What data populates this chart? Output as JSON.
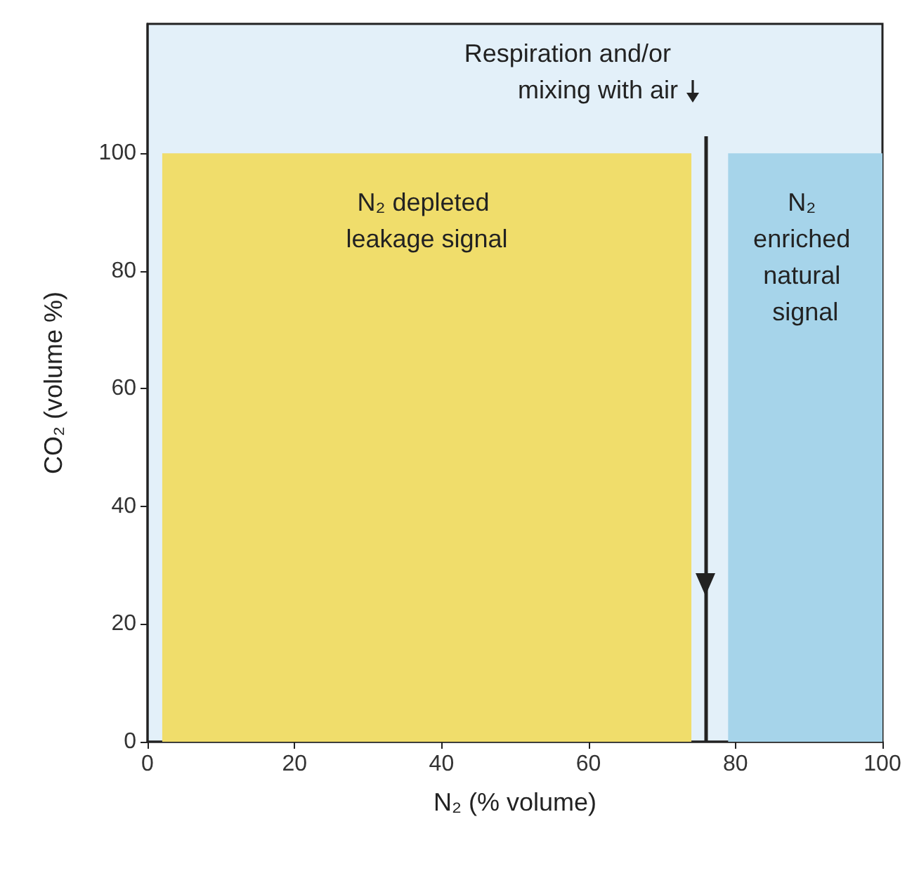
{
  "chart_data": {
    "type": "area",
    "xlabel": "N₂ (% volume)",
    "ylabel": "CO₂ (volume %)",
    "xlim": [
      0,
      100
    ],
    "ylim": [
      0,
      122
    ],
    "xticks": [
      0,
      20,
      40,
      60,
      80,
      100
    ],
    "yticks": [
      0,
      20,
      40,
      60,
      80,
      100
    ],
    "grid": false,
    "series": [
      {
        "name": "N₂ depleted leakage signal",
        "color": "#f0dd6b",
        "x": [
          2,
          74
        ],
        "values": [
          100,
          100
        ]
      },
      {
        "name": "N₂ enriched natural signal",
        "color": "#a6d4ea",
        "x": [
          79,
          100
        ],
        "values": [
          100,
          100
        ]
      }
    ],
    "ref_lines": [
      {
        "axis": "x",
        "value": 76,
        "label": "Respiration and/or mixing with air",
        "color": "#222222"
      }
    ]
  }
}
